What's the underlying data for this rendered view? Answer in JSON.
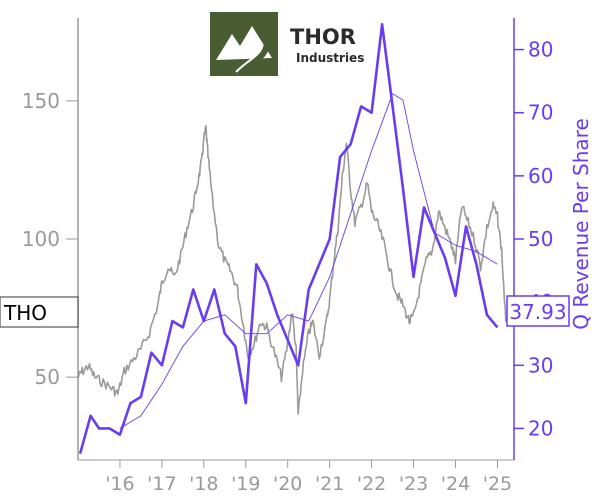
{
  "logo": {
    "name": "THOR",
    "subtitle": "Industries"
  },
  "ticker_label": "THO",
  "last_value_label": "37.93",
  "colors": {
    "price": "#9a9a9a",
    "metric": "#6a3cf0",
    "logo_green": "#4a5d32"
  },
  "chart_data": {
    "type": "line",
    "title": "",
    "xlabel": "",
    "ylabel_left": "",
    "ylabel_right": "Q Revenue Per Share",
    "x_tick_labels": [
      "'16",
      "'17",
      "'18",
      "'19",
      "'20",
      "'21",
      "'22",
      "'23",
      "'24",
      "'25"
    ],
    "x_tick_years": [
      2016,
      2017,
      2018,
      2019,
      2020,
      2021,
      2022,
      2023,
      2024,
      2025
    ],
    "xlim": [
      2015.0,
      2025.3
    ],
    "left_axis": {
      "ticks": [
        50,
        100,
        150
      ],
      "ylim": [
        20,
        180
      ]
    },
    "right_axis": {
      "ticks": [
        20,
        30,
        40,
        50,
        60,
        70,
        80
      ],
      "ylim": [
        15,
        85
      ]
    },
    "grid": false,
    "legend": "none",
    "series": [
      {
        "axis": "left",
        "style": "price",
        "x": [
          2015.0,
          2015.1,
          2015.25,
          2015.4,
          2015.6,
          2015.8,
          2015.95,
          2016.1,
          2016.3,
          2016.5,
          2016.7,
          2016.9,
          2017.0,
          2017.15,
          2017.3,
          2017.45,
          2017.6,
          2017.75,
          2017.85,
          2017.95,
          2018.0,
          2018.05,
          2018.1,
          2018.2,
          2018.35,
          2018.5,
          2018.65,
          2018.8,
          2018.95,
          2019.05,
          2019.2,
          2019.35,
          2019.5,
          2019.7,
          2019.85,
          2020.0,
          2020.1,
          2020.2,
          2020.25,
          2020.35,
          2020.5,
          2020.6,
          2020.75,
          2020.9,
          2021.0,
          2021.1,
          2021.2,
          2021.3,
          2021.4,
          2021.5,
          2021.6,
          2021.75,
          2021.9,
          2022.0,
          2022.15,
          2022.3,
          2022.45,
          2022.6,
          2022.75,
          2022.9,
          2023.0,
          2023.15,
          2023.3,
          2023.45,
          2023.6,
          2023.75,
          2023.9,
          2024.0,
          2024.15,
          2024.3,
          2024.45,
          2024.6,
          2024.75,
          2024.9,
          2025.0,
          2025.1,
          2025.2
        ],
        "y": [
          50,
          52,
          54,
          50,
          48,
          46,
          44,
          52,
          56,
          60,
          66,
          76,
          84,
          90,
          86,
          94,
          104,
          112,
          120,
          128,
          136,
          140,
          130,
          115,
          98,
          92,
          88,
          82,
          68,
          58,
          62,
          70,
          68,
          58,
          50,
          62,
          74,
          60,
          36,
          52,
          66,
          70,
          58,
          68,
          78,
          92,
          104,
          122,
          135,
          118,
          106,
          112,
          120,
          110,
          105,
          98,
          88,
          80,
          76,
          70,
          72,
          82,
          92,
          96,
          110,
          104,
          98,
          92,
          112,
          106,
          100,
          90,
          104,
          112,
          108,
          96,
          70
        ]
      },
      {
        "axis": "right",
        "style": "metric-thin",
        "x": [
          2016.0,
          2016.5,
          2017.0,
          2017.5,
          2018.0,
          2018.5,
          2019.0,
          2019.5,
          2020.0,
          2020.5,
          2021.0,
          2021.5,
          2022.0,
          2022.5,
          2022.75,
          2023.0,
          2023.5,
          2024.0,
          2024.5,
          2025.0
        ],
        "y": [
          20,
          22,
          27,
          33,
          37,
          38,
          35,
          35,
          38,
          37,
          44,
          54,
          64,
          73,
          72,
          64,
          51,
          49,
          48,
          46
        ]
      },
      {
        "axis": "right",
        "style": "metric-thick",
        "x": [
          2015.05,
          2015.3,
          2015.5,
          2015.75,
          2016.0,
          2016.25,
          2016.5,
          2016.75,
          2017.0,
          2017.25,
          2017.5,
          2017.75,
          2018.0,
          2018.25,
          2018.5,
          2018.75,
          2019.0,
          2019.25,
          2019.5,
          2019.75,
          2020.0,
          2020.25,
          2020.5,
          2020.75,
          2021.0,
          2021.25,
          2021.5,
          2021.75,
          2022.0,
          2022.25,
          2022.5,
          2022.75,
          2023.0,
          2023.25,
          2023.5,
          2023.75,
          2024.0,
          2024.25,
          2024.5,
          2024.75,
          2025.0
        ],
        "y": [
          16,
          22,
          20,
          20,
          19,
          24,
          25,
          32,
          30,
          37,
          36,
          42,
          37,
          42,
          35,
          33,
          24,
          46,
          43,
          38,
          34,
          30,
          42,
          46,
          50,
          63,
          65,
          71,
          70,
          84,
          71,
          58,
          44,
          55,
          51,
          47,
          41,
          52,
          46,
          38,
          36
        ]
      }
    ]
  }
}
